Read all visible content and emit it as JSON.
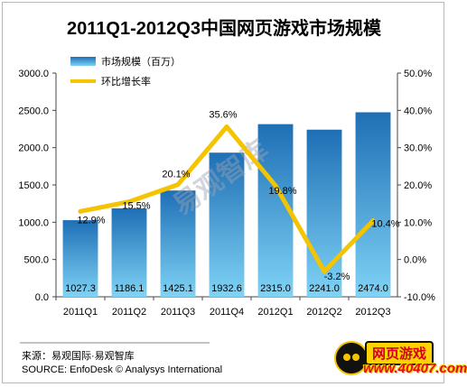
{
  "chart_data": {
    "type": "bar",
    "title": "2011Q1-2012Q3中国网页游戏市场规模",
    "categories": [
      "2011Q1",
      "2011Q2",
      "2011Q3",
      "2011Q4",
      "2012Q1",
      "2012Q2",
      "2012Q3"
    ],
    "series": [
      {
        "name": "市场规模（百万）",
        "type": "bar",
        "axis": "left",
        "values": [
          1027.3,
          1186.1,
          1425.1,
          1932.6,
          2315.0,
          2241.0,
          2474.0
        ],
        "labels": [
          "1027.3",
          "1186.1",
          "1425.1",
          "1932.6",
          "2315.0",
          "2241.0",
          "2474.0"
        ]
      },
      {
        "name": "环比增长率",
        "type": "line",
        "axis": "right",
        "values": [
          12.9,
          15.5,
          20.1,
          35.6,
          19.8,
          -3.2,
          10.4
        ],
        "labels": [
          "12.9%",
          "15.5%",
          "20.1%",
          "35.6%",
          "19.8%",
          "-3.2%",
          "10.4%"
        ]
      }
    ],
    "ylim": [
      0,
      3000
    ],
    "y_ticks": [
      "0.0",
      "500.0",
      "1000.0",
      "1500.0",
      "2000.0",
      "2500.0",
      "3000.0"
    ],
    "y2lim": [
      -10,
      50
    ],
    "y2_ticks": [
      "-10.0%",
      "0.0%",
      "10.0%",
      "20.0%",
      "30.0%",
      "40.0%",
      "50.0%"
    ],
    "legend_position": "top-left",
    "grid": false,
    "colors": {
      "bar_top": "#1e6fb5",
      "bar_bottom": "#7fd3f5",
      "line": "#f5c400"
    }
  },
  "watermark": "易观智库",
  "source_lines": [
    "来源：易观国际·易观智库",
    "SOURCE: EnfoDesk © Analysys International"
  ],
  "logo": {
    "badge_text": "网页游戏",
    "url_text": "www.40407.com"
  }
}
